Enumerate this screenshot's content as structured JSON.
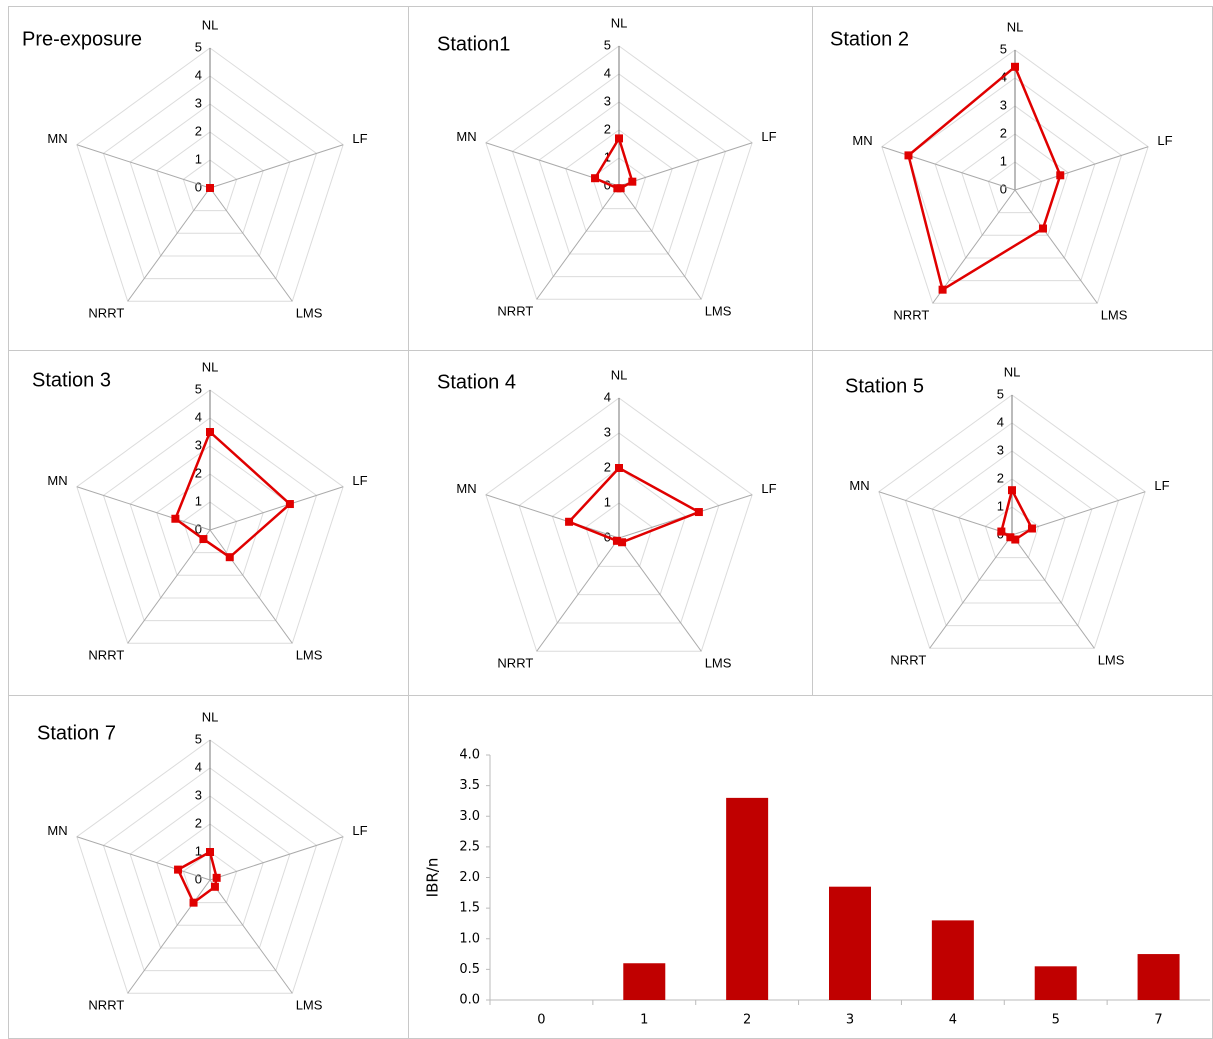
{
  "chart_data": [
    {
      "type": "radar",
      "title": "Pre-exposure",
      "categories": [
        "NL",
        "LF",
        "LMS",
        "NRRT",
        "MN"
      ],
      "series": [
        {
          "color": "#e00000",
          "values": [
            0,
            0,
            0,
            0,
            0
          ]
        }
      ],
      "rlim": [
        0,
        5
      ],
      "rticks": [
        0,
        1,
        2,
        3,
        4,
        5
      ]
    },
    {
      "type": "radar",
      "title": "Station1",
      "categories": [
        "NL",
        "LF",
        "LMS",
        "NRRT",
        "MN"
      ],
      "series": [
        {
          "color": "#e00000",
          "values": [
            1.7,
            0.5,
            0.1,
            0.1,
            0.9
          ]
        }
      ],
      "rlim": [
        0,
        5
      ],
      "rticks": [
        0,
        1,
        2,
        3,
        4,
        5
      ]
    },
    {
      "type": "radar",
      "title": "Station 2",
      "categories": [
        "NL",
        "LF",
        "LMS",
        "NRRT",
        "MN"
      ],
      "series": [
        {
          "color": "#e00000",
          "values": [
            4.4,
            1.7,
            1.7,
            4.4,
            4.0
          ]
        }
      ],
      "rlim": [
        0,
        5
      ],
      "rticks": [
        0,
        1,
        2,
        3,
        4,
        5
      ]
    },
    {
      "type": "radar",
      "title": "Station 3",
      "categories": [
        "NL",
        "LF",
        "LMS",
        "NRRT",
        "MN"
      ],
      "series": [
        {
          "color": "#e00000",
          "values": [
            3.5,
            3.0,
            1.2,
            0.4,
            1.3
          ]
        }
      ],
      "rlim": [
        0,
        5
      ],
      "rticks": [
        0,
        1,
        2,
        3,
        4,
        5
      ]
    },
    {
      "type": "radar",
      "title": "Station 4",
      "categories": [
        "NL",
        "LF",
        "LMS",
        "NRRT",
        "MN"
      ],
      "series": [
        {
          "color": "#e00000",
          "values": [
            2.0,
            2.4,
            0.15,
            0.1,
            1.5
          ]
        }
      ],
      "rlim": [
        0,
        4
      ],
      "rticks": [
        0,
        1,
        2,
        3,
        4
      ]
    },
    {
      "type": "radar",
      "title": "Station 5",
      "categories": [
        "NL",
        "LF",
        "LMS",
        "NRRT",
        "MN"
      ],
      "series": [
        {
          "color": "#e00000",
          "values": [
            1.6,
            0.75,
            0.2,
            0.1,
            0.4
          ]
        }
      ],
      "rlim": [
        0,
        5
      ],
      "rticks": [
        0,
        1,
        2,
        3,
        4,
        5
      ]
    },
    {
      "type": "radar",
      "title": "Station 7",
      "categories": [
        "NL",
        "LF",
        "LMS",
        "NRRT",
        "MN"
      ],
      "series": [
        {
          "color": "#e00000",
          "values": [
            1.0,
            0.25,
            0.3,
            1.0,
            1.2
          ]
        }
      ],
      "rlim": [
        0,
        5
      ],
      "rticks": [
        0,
        1,
        2,
        3,
        4,
        5
      ]
    },
    {
      "type": "bar",
      "ylabel": "IBR/n",
      "categories": [
        "0",
        "1",
        "2",
        "3",
        "4",
        "5",
        "7"
      ],
      "values": [
        0,
        0.6,
        3.3,
        1.85,
        1.3,
        0.55,
        0.75
      ],
      "color": "#c00000",
      "ylim": [
        0,
        4
      ],
      "yticks": [
        {
          "value": 0,
          "label": "0.0"
        },
        {
          "value": 0.5,
          "label": "0.5"
        },
        {
          "value": 1,
          "label": "1.0"
        },
        {
          "value": 1.5,
          "label": "1.5"
        },
        {
          "value": 2,
          "label": "2.0"
        },
        {
          "value": 2.5,
          "label": "2.5"
        },
        {
          "value": 3,
          "label": "3.0"
        },
        {
          "value": 3.5,
          "label": "3.5"
        },
        {
          "value": 4,
          "label": "4.0"
        }
      ]
    }
  ]
}
